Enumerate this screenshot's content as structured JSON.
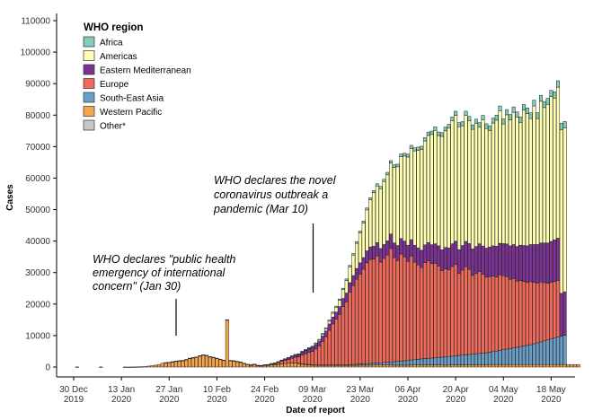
{
  "chart_data": {
    "type": "bar",
    "stacked": true,
    "xlabel": "Date of report",
    "ylabel": "Cases",
    "ylim": [
      0,
      110000
    ],
    "y_ticks": [
      0,
      10000,
      20000,
      30000,
      40000,
      50000,
      60000,
      70000,
      80000,
      90000,
      100000,
      110000
    ],
    "x_range": [
      "2019-12-25",
      "2020-05-25"
    ],
    "x_ticks": [
      {
        "date": "2019-12-30",
        "label": [
          "30 Dec",
          "2019"
        ]
      },
      {
        "date": "2020-01-13",
        "label": [
          "13 Jan",
          "2020"
        ]
      },
      {
        "date": "2020-01-27",
        "label": [
          "27 Jan",
          "2020"
        ]
      },
      {
        "date": "2020-02-10",
        "label": [
          "10 Feb",
          "2020"
        ]
      },
      {
        "date": "2020-02-24",
        "label": [
          "24 Feb",
          "2020"
        ]
      },
      {
        "date": "2020-03-09",
        "label": [
          "09 Mar",
          "2020"
        ]
      },
      {
        "date": "2020-03-23",
        "label": [
          "23 Mar",
          "2020"
        ]
      },
      {
        "date": "2020-04-06",
        "label": [
          "06 Apr",
          "2020"
        ]
      },
      {
        "date": "2020-04-20",
        "label": [
          "20 Apr",
          "2020"
        ]
      },
      {
        "date": "2020-05-04",
        "label": [
          "04 May",
          "2020"
        ]
      },
      {
        "date": "2020-05-18",
        "label": [
          "18 May",
          "2020"
        ]
      }
    ],
    "grid": false,
    "legend": {
      "title": "WHO region",
      "position": "top-left",
      "entries": [
        {
          "name": "Africa",
          "color": "#7fcdbb"
        },
        {
          "name": "Americas",
          "color": "#ffffb3"
        },
        {
          "name": "Eastern Mediterranean",
          "color": "#7b3294"
        },
        {
          "name": "Europe",
          "color": "#ef6a5a"
        },
        {
          "name": "South-East Asia",
          "color": "#6aa0c8"
        },
        {
          "name": "Western Pacific",
          "color": "#f5a54a"
        },
        {
          "name": "Other*",
          "color": "#c8c8c8"
        }
      ]
    },
    "annotations": [
      {
        "date": "2020-01-30",
        "text": [
          "WHO declares \"public health",
          "emergency of international",
          "concern\" (Jan 30)"
        ]
      },
      {
        "date": "2020-03-10",
        "text": [
          "WHO declares the novel",
          "coronavirus outbreak a",
          "pandemic (Mar 10)"
        ]
      }
    ],
    "start_date": "2019-12-31",
    "series": [
      {
        "name": "Western Pacific",
        "color": "#f5a54a",
        "values": [
          40,
          0,
          0,
          0,
          0,
          0,
          0,
          40,
          0,
          0,
          0,
          0,
          0,
          0,
          20,
          20,
          30,
          50,
          80,
          130,
          150,
          300,
          450,
          600,
          800,
          1200,
          1400,
          1500,
          1700,
          1900,
          2000,
          2100,
          2400,
          2800,
          3000,
          3200,
          3600,
          3900,
          3700,
          3300,
          3100,
          2800,
          2500,
          2200,
          15000,
          2100,
          2000,
          1800,
          1600,
          1200,
          900,
          700,
          900,
          500,
          400,
          500,
          500,
          650,
          700,
          800,
          1000,
          1100,
          1200,
          1300,
          1300,
          1200,
          1000,
          900,
          800,
          700,
          700,
          600,
          600,
          600,
          600,
          600,
          550,
          550,
          500,
          500,
          550,
          550,
          550,
          600,
          600,
          600,
          600,
          650,
          650,
          650,
          700,
          650,
          650,
          600,
          600,
          600,
          600,
          600,
          650,
          650,
          650,
          700,
          700,
          650,
          650,
          650,
          700,
          650,
          600,
          650,
          650,
          650,
          700,
          700,
          700,
          700,
          700,
          700,
          750,
          750,
          750,
          800,
          800,
          800,
          800,
          800,
          800,
          800,
          800,
          800,
          800,
          800,
          800,
          800,
          800,
          800,
          800,
          800,
          800,
          800,
          800,
          800,
          800,
          800,
          800,
          800,
          800,
          800
        ]
      },
      {
        "name": "South-East Asia",
        "color": "#6aa0c8",
        "values": [
          0,
          0,
          0,
          0,
          0,
          0,
          0,
          0,
          0,
          0,
          0,
          0,
          0,
          0,
          0,
          0,
          0,
          0,
          0,
          0,
          0,
          0,
          0,
          0,
          0,
          0,
          0,
          0,
          0,
          0,
          0,
          0,
          0,
          0,
          0,
          0,
          0,
          0,
          0,
          0,
          0,
          0,
          0,
          0,
          0,
          0,
          0,
          0,
          0,
          0,
          0,
          0,
          0,
          0,
          0,
          0,
          0,
          0,
          0,
          0,
          0,
          0,
          0,
          0,
          0,
          5,
          10,
          10,
          20,
          20,
          30,
          40,
          50,
          60,
          80,
          100,
          120,
          150,
          180,
          200,
          250,
          300,
          350,
          400,
          450,
          500,
          550,
          600,
          650,
          700,
          800,
          900,
          1000,
          1100,
          1200,
          1300,
          1400,
          1500,
          1600,
          1700,
          1800,
          1900,
          2000,
          2100,
          2200,
          2300,
          2400,
          2500,
          2600,
          2700,
          2800,
          2900,
          3000,
          3100,
          3200,
          3300,
          3400,
          3500,
          3600,
          3700,
          3800,
          3900,
          4100,
          4300,
          4500,
          4700,
          4900,
          5100,
          5300,
          5500,
          5700,
          5900,
          6100,
          6300,
          6600,
          6900,
          7200,
          7500,
          7800,
          8100,
          8400,
          8700,
          9000,
          9300
        ]
      },
      {
        "name": "Europe",
        "color": "#ef6a5a",
        "values": [
          0,
          0,
          0,
          0,
          0,
          0,
          0,
          0,
          0,
          0,
          0,
          0,
          0,
          0,
          0,
          0,
          0,
          0,
          0,
          0,
          0,
          0,
          0,
          0,
          0,
          0,
          5,
          5,
          5,
          5,
          5,
          5,
          5,
          5,
          5,
          5,
          5,
          5,
          5,
          5,
          5,
          5,
          5,
          5,
          5,
          5,
          5,
          5,
          5,
          5,
          5,
          10,
          20,
          40,
          80,
          150,
          200,
          300,
          400,
          600,
          800,
          1000,
          1200,
          1500,
          1800,
          2000,
          2800,
          3300,
          3800,
          4200,
          5000,
          6000,
          7500,
          9000,
          11000,
          13000,
          14500,
          16000,
          18500,
          20000,
          23000,
          25000,
          27000,
          28500,
          30000,
          32000,
          33000,
          33000,
          34000,
          32000,
          33000,
          34000,
          36000,
          33000,
          32000,
          34000,
          33000,
          31500,
          33000,
          31000,
          30000,
          29000,
          30500,
          31000,
          30000,
          30000,
          29000,
          27500,
          28000,
          27500,
          28500,
          29000,
          26000,
          27000,
          28000,
          27000,
          25000,
          25500,
          26000,
          25000,
          24000,
          24000,
          24000,
          23500,
          24000,
          23500,
          23000,
          22000,
          22000,
          21000,
          21000,
          20500,
          20000,
          20000,
          19500,
          19000,
          19000,
          18500,
          18000,
          18000,
          18000,
          18000
        ]
      },
      {
        "name": "Eastern Mediterranean",
        "color": "#7b3294",
        "values": [
          0,
          0,
          0,
          0,
          0,
          0,
          0,
          0,
          0,
          0,
          0,
          0,
          0,
          0,
          0,
          0,
          0,
          0,
          0,
          0,
          0,
          0,
          0,
          0,
          0,
          0,
          0,
          0,
          0,
          0,
          0,
          0,
          0,
          0,
          0,
          0,
          0,
          0,
          0,
          0,
          0,
          0,
          0,
          0,
          0,
          0,
          0,
          0,
          0,
          0,
          0,
          10,
          20,
          30,
          50,
          80,
          100,
          150,
          200,
          300,
          400,
          500,
          600,
          700,
          800,
          900,
          1000,
          1100,
          1200,
          1300,
          1400,
          1500,
          1700,
          1800,
          2000,
          2200,
          2300,
          2500,
          2600,
          2800,
          3000,
          3200,
          3400,
          3600,
          3700,
          3800,
          4000,
          4100,
          4200,
          4300,
          4400,
          4500,
          4600,
          4700,
          4800,
          4900,
          5000,
          5100,
          5200,
          5300,
          5400,
          5500,
          5600,
          5800,
          6000,
          6200,
          6400,
          6600,
          6800,
          7000,
          7200,
          7400,
          7600,
          7800,
          8000,
          8200,
          8400,
          8600,
          8800,
          9000,
          9200,
          9400,
          9600,
          9800,
          10000,
          10200,
          10400,
          10600,
          10800,
          11000,
          11200,
          11400,
          11600,
          11800,
          12000,
          12200,
          12400,
          12600,
          12800,
          13000,
          13200,
          13400,
          13600,
          13800
        ]
      },
      {
        "name": "Americas",
        "color": "#ffffb3",
        "values": [
          0,
          0,
          0,
          0,
          0,
          0,
          0,
          0,
          0,
          0,
          0,
          0,
          0,
          0,
          0,
          0,
          0,
          0,
          0,
          0,
          0,
          0,
          0,
          0,
          0,
          0,
          0,
          0,
          0,
          0,
          0,
          0,
          0,
          0,
          0,
          0,
          0,
          0,
          0,
          0,
          0,
          0,
          0,
          0,
          0,
          0,
          0,
          0,
          0,
          0,
          0,
          0,
          0,
          0,
          0,
          0,
          0,
          0,
          0,
          0,
          0,
          0,
          0,
          0,
          0,
          10,
          50,
          100,
          150,
          200,
          300,
          400,
          500,
          700,
          900,
          1200,
          1500,
          2000,
          2800,
          4000,
          5000,
          6500,
          8000,
          9500,
          11000,
          13000,
          15000,
          17000,
          18000,
          19000,
          20000,
          21000,
          22500,
          24000,
          25000,
          26000,
          27000,
          28000,
          29000,
          30000,
          31000,
          32000,
          33000,
          34000,
          35000,
          36000,
          35000,
          36000,
          37000,
          38000,
          39000,
          40000,
          39000,
          38000,
          40000,
          39000,
          38000,
          39000,
          37000,
          40000,
          38000,
          37000,
          39000,
          40000,
          42000,
          38000,
          41000,
          40000,
          42000,
          41000,
          39000,
          43000,
          42000,
          40000,
          44000,
          40000,
          45000,
          43000,
          44000,
          46000,
          45000,
          48000,
          52000,
          52000
        ]
      },
      {
        "name": "Africa",
        "color": "#7fcdbb",
        "values": [
          0,
          0,
          0,
          0,
          0,
          0,
          0,
          0,
          0,
          0,
          0,
          0,
          0,
          0,
          0,
          0,
          0,
          0,
          0,
          0,
          0,
          0,
          0,
          0,
          0,
          0,
          0,
          0,
          0,
          0,
          0,
          0,
          0,
          0,
          0,
          0,
          0,
          0,
          0,
          0,
          0,
          0,
          0,
          0,
          0,
          0,
          0,
          0,
          0,
          0,
          0,
          0,
          0,
          0,
          0,
          5,
          10,
          15,
          20,
          30,
          40,
          50,
          60,
          80,
          100,
          120,
          150,
          180,
          200,
          220,
          250,
          280,
          300,
          330,
          350,
          380,
          400,
          420,
          450,
          480,
          500,
          520,
          550,
          580,
          600,
          620,
          650,
          680,
          700,
          720,
          750,
          780,
          800,
          820,
          850,
          880,
          900,
          920,
          950,
          980,
          1000,
          1020,
          1050,
          1080,
          1100,
          1120,
          1150,
          1180,
          1200,
          1220,
          1250,
          1280,
          1300,
          1320,
          1350,
          1380,
          1400,
          1420,
          1450,
          1480,
          1500,
          1520,
          1550,
          1580,
          1600,
          1620,
          1650,
          1680,
          1700,
          1720,
          1750,
          1780,
          1800,
          1820,
          1850,
          1880,
          1900,
          1920,
          1950,
          1980,
          2000,
          2020,
          2050,
          2080
        ]
      },
      {
        "name": "Other*",
        "color": "#c8c8c8",
        "values": [
          0,
          0,
          0,
          0,
          0,
          0,
          0,
          0,
          0,
          0,
          0,
          0,
          0,
          0,
          0,
          0,
          0,
          0,
          0,
          0,
          0,
          0,
          0,
          0,
          0,
          0,
          0,
          0,
          0,
          0,
          0,
          0,
          0,
          0,
          0,
          0,
          0,
          0,
          0,
          0,
          0,
          0,
          0,
          0,
          0,
          0,
          0,
          0,
          0,
          0,
          0,
          0,
          0,
          0,
          0,
          0,
          0,
          0,
          0,
          0,
          0,
          0,
          0,
          0,
          0,
          0,
          0,
          0,
          0,
          0,
          0,
          0,
          0,
          0,
          0,
          0,
          0,
          0,
          0,
          0,
          0,
          0,
          0,
          0,
          0,
          0,
          0,
          0,
          0,
          0,
          0,
          0,
          0,
          0,
          0,
          0,
          0,
          0,
          0,
          0,
          0,
          0,
          0,
          0,
          0,
          0,
          0,
          0,
          0,
          0,
          0,
          0,
          0,
          0,
          0,
          0,
          0,
          0,
          0,
          0,
          0,
          0,
          0,
          0,
          0,
          0,
          0,
          0,
          0,
          0,
          0,
          0,
          0,
          0,
          0,
          0,
          0,
          0,
          0,
          0,
          0,
          0,
          0,
          0
        ]
      }
    ]
  }
}
